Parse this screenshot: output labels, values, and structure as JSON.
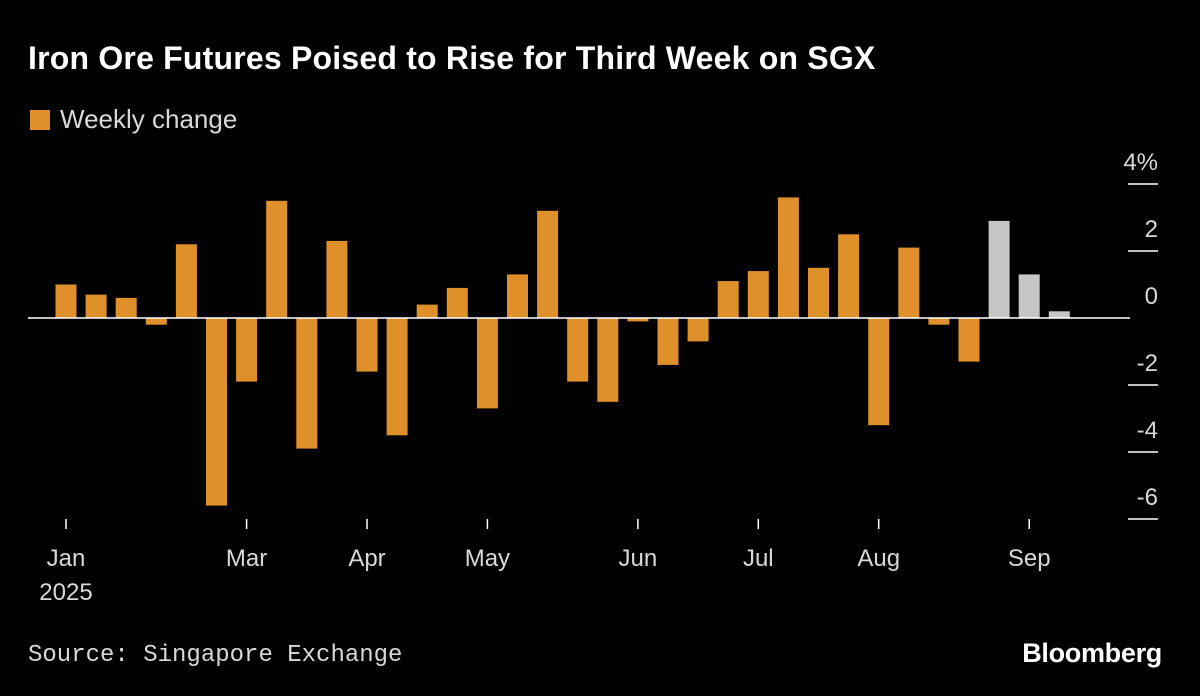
{
  "header": {
    "title": "Iron Ore Futures Poised to Rise for Third Week on SGX"
  },
  "footer": {
    "source": "Source: Singapore Exchange",
    "brand": "Bloomberg"
  },
  "colors": {
    "background": "#000000",
    "bar_main": "#e0902a",
    "bar_recent": "#c6c6c6",
    "axis": "#ffffff",
    "text": "#d8d8d8"
  },
  "chart_data": {
    "type": "bar",
    "title": "Iron Ore Futures Poised to Rise for Third Week on SGX",
    "legend": [
      {
        "name": "Weekly change",
        "color": "#e0902a"
      }
    ],
    "legend_position": "top-left",
    "y_axis": {
      "side": "right",
      "ylim": [
        -6,
        4
      ],
      "ticks": [
        4,
        2,
        0,
        -2,
        -4,
        -6
      ],
      "tick_labels": [
        "4%",
        "2",
        "0",
        "-2",
        "-4",
        "-6"
      ],
      "unit": "%"
    },
    "x_axis": {
      "tick_labels": [
        {
          "label": "Jan",
          "sublabel": "2025",
          "index": 0
        },
        {
          "label": "Mar",
          "index": 6
        },
        {
          "label": "Apr",
          "index": 10
        },
        {
          "label": "May",
          "index": 14
        },
        {
          "label": "Jun",
          "index": 19
        },
        {
          "label": "Jul",
          "index": 23
        },
        {
          "label": "Aug",
          "index": 27
        },
        {
          "label": "Sep",
          "index": 32
        }
      ]
    },
    "grid": false,
    "series": [
      {
        "name": "Weekly change",
        "color": "#e0902a",
        "values": [
          1.0,
          0.7,
          0.6,
          -0.2,
          2.2,
          -5.6,
          -1.9,
          3.5,
          -3.9,
          2.3,
          -1.6,
          -3.5,
          0.4,
          0.9,
          -2.7,
          1.3,
          3.2,
          -1.9,
          -2.5,
          -0.1,
          -1.4,
          -0.7,
          1.1,
          1.4,
          3.6,
          1.5,
          2.5,
          -3.2,
          2.1,
          -0.2,
          -1.3,
          2.9,
          1.3,
          0.2
        ],
        "highlight_last_n": 3,
        "highlight_color": "#c6c6c6"
      }
    ]
  }
}
